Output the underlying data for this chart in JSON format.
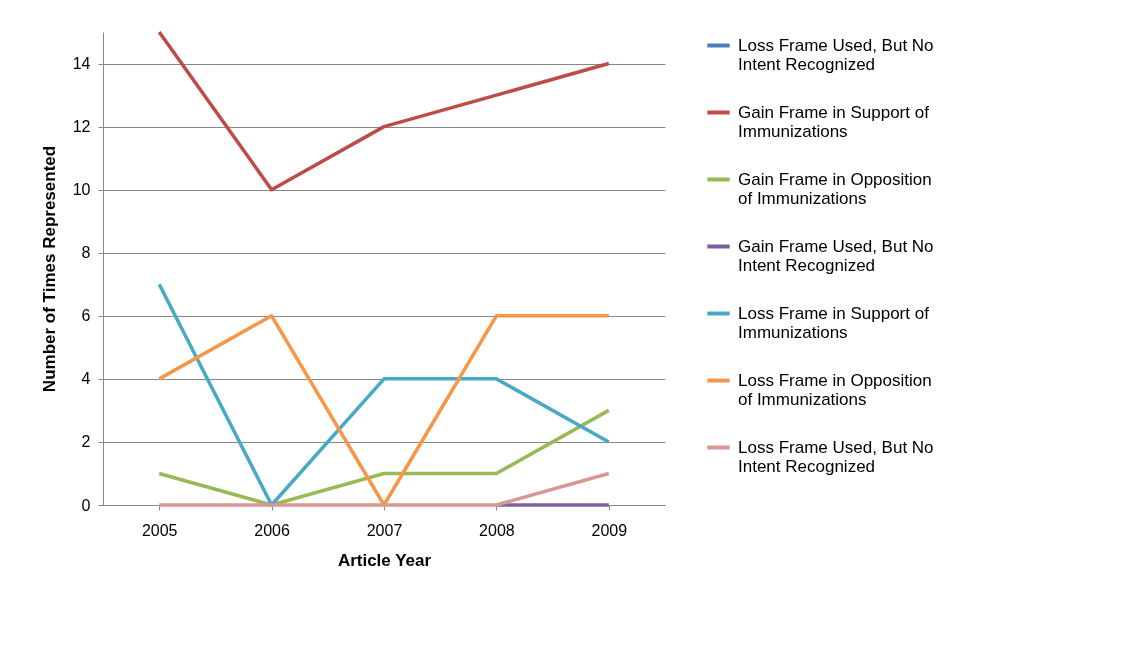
{
  "chart_data": {
    "type": "line",
    "xlabel": "Article Year",
    "ylabel": "Number of Times Represented",
    "categories": [
      "2005",
      "2006",
      "2007",
      "2008",
      "2009"
    ],
    "ylim": [
      0,
      15
    ],
    "yticks": [
      0,
      2,
      4,
      6,
      8,
      10,
      12,
      14
    ],
    "grid": "y",
    "legend": "right",
    "marker": "none",
    "line_style": "solid",
    "series": [
      {
        "name": "Loss Frame Used, But No Intent Recognized",
        "color": "#4a7ebb",
        "values": [
          null,
          null,
          null,
          null,
          null
        ]
      },
      {
        "name": "Gain Frame in Support of Immunizations",
        "color": "#be4b48",
        "values": [
          15,
          10,
          12,
          13,
          14
        ]
      },
      {
        "name": "Gain Frame in Opposition of Immunizations",
        "color": "#98b954",
        "values": [
          1,
          0,
          1,
          1,
          3
        ]
      },
      {
        "name": "Gain Frame Used, But No Intent Recognized",
        "color": "#7d60a0",
        "values": [
          null,
          null,
          null,
          0,
          0
        ]
      },
      {
        "name": "Loss Frame in Support of Immunizations",
        "color": "#46aac5",
        "values": [
          7,
          0,
          4,
          4,
          2
        ]
      },
      {
        "name": "Loss Frame in Opposition of Immunizations",
        "color": "#f79646",
        "values": [
          4,
          6,
          0,
          6,
          6
        ]
      },
      {
        "name": "Loss Frame Used, But No Intent Recognized",
        "color": "#d99694",
        "values": [
          0,
          0,
          0,
          0,
          1
        ]
      }
    ]
  }
}
